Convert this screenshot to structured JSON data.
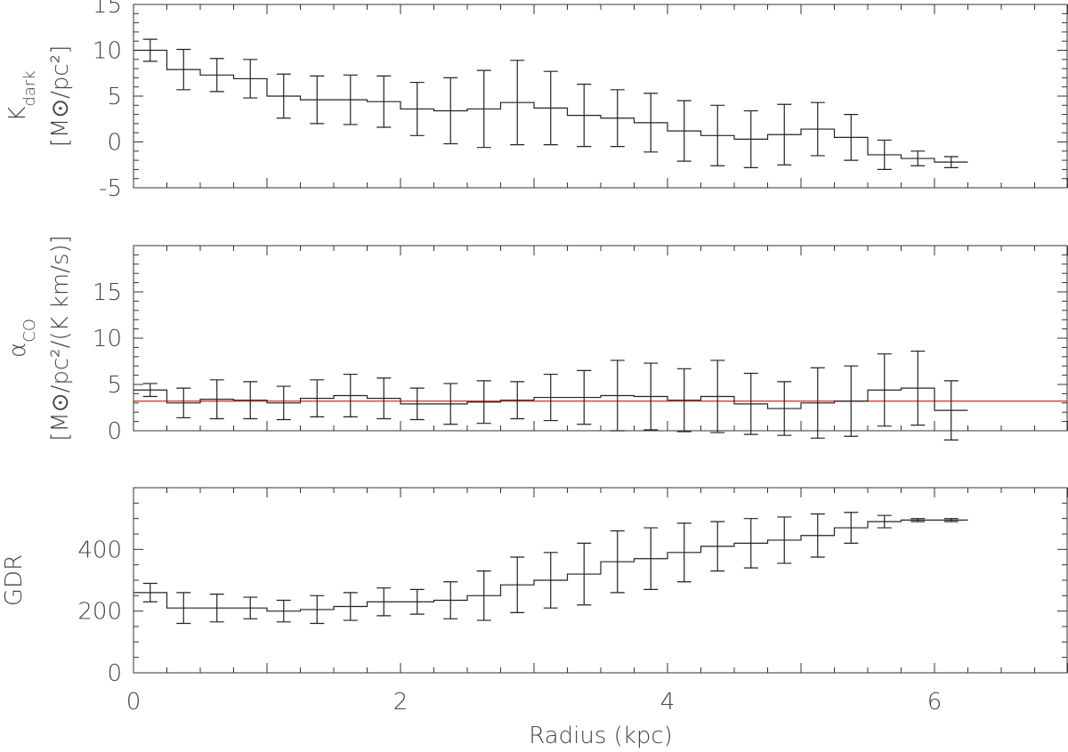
{
  "colors": {
    "ink": "#222222",
    "reference_line": "#d62728"
  },
  "x_axis": {
    "label": "Radius (kpc)",
    "range": [
      0,
      7
    ],
    "tick_values": [
      0,
      2,
      4,
      6
    ],
    "tick_labels": [
      "0",
      "2",
      "4",
      "6"
    ]
  },
  "chart_data": [
    {
      "type": "line",
      "style": "step histogram with error bars",
      "ylabel_main": "K",
      "ylabel_sub": "dark",
      "ylabel_units": "[M⊙/pc²]",
      "ylim": [
        -5,
        15
      ],
      "ytick_values": [
        -5,
        0,
        5,
        10,
        15
      ],
      "ytick_labels": [
        "-5",
        "0",
        "5",
        "10",
        "15"
      ],
      "series": [
        {
          "x": [
            0.125,
            0.375,
            0.625,
            0.875,
            1.125,
            1.375,
            1.625,
            1.875,
            2.125,
            2.375,
            2.625,
            2.875,
            3.125,
            3.375,
            3.625,
            3.875,
            4.125,
            4.375,
            4.625,
            4.875,
            5.125,
            5.375,
            5.625,
            5.875,
            6.125
          ],
          "values": [
            10.0,
            7.9,
            7.3,
            6.9,
            5.0,
            4.6,
            4.6,
            4.4,
            3.6,
            3.4,
            3.6,
            4.3,
            3.7,
            2.9,
            2.6,
            2.1,
            1.2,
            0.7,
            0.3,
            0.8,
            1.4,
            0.5,
            -1.4,
            -1.8,
            -2.2
          ],
          "err": [
            1.2,
            2.2,
            1.8,
            2.1,
            2.4,
            2.6,
            2.7,
            2.8,
            2.9,
            3.6,
            4.2,
            4.6,
            4.0,
            3.4,
            3.1,
            3.2,
            3.3,
            3.3,
            3.1,
            3.3,
            2.9,
            2.5,
            1.6,
            0.8,
            0.6
          ]
        }
      ]
    },
    {
      "type": "line",
      "style": "step histogram with error bars",
      "ylabel_main": "α",
      "ylabel_sub": "CO",
      "ylabel_units": "[M⊙/pc²/(K km/s)]",
      "ylim": [
        0,
        20
      ],
      "ytick_values": [
        0,
        5,
        10,
        15
      ],
      "ytick_labels": [
        "0",
        "5",
        "10",
        "15"
      ],
      "reference_line": 3.2,
      "series": [
        {
          "x": [
            0.125,
            0.375,
            0.625,
            0.875,
            1.125,
            1.375,
            1.625,
            1.875,
            2.125,
            2.375,
            2.625,
            2.875,
            3.125,
            3.375,
            3.625,
            3.875,
            4.125,
            4.375,
            4.625,
            4.875,
            5.125,
            5.375,
            5.625,
            5.875,
            6.125
          ],
          "values": [
            4.4,
            3.0,
            3.4,
            3.3,
            3.0,
            3.5,
            3.8,
            3.5,
            2.9,
            2.9,
            3.1,
            3.3,
            3.6,
            3.6,
            3.8,
            3.7,
            3.3,
            3.7,
            2.9,
            2.4,
            3.0,
            3.2,
            4.4,
            4.6,
            2.2
          ],
          "err": [
            0.7,
            1.6,
            2.1,
            2.0,
            1.8,
            2.0,
            2.3,
            2.2,
            1.7,
            2.2,
            2.3,
            2.0,
            2.5,
            2.9,
            3.8,
            3.6,
            3.4,
            3.9,
            3.3,
            2.9,
            3.8,
            3.8,
            3.9,
            4.0,
            3.2
          ]
        }
      ]
    },
    {
      "type": "line",
      "style": "step histogram with error bars",
      "ylabel_main": "GDR",
      "ylabel_sub": "",
      "ylabel_units": "",
      "ylim": [
        0,
        600
      ],
      "ytick_values": [
        0,
        200,
        400
      ],
      "ytick_labels": [
        "0",
        "200",
        "400"
      ],
      "series": [
        {
          "x": [
            0.125,
            0.375,
            0.625,
            0.875,
            1.125,
            1.375,
            1.625,
            1.875,
            2.125,
            2.375,
            2.625,
            2.875,
            3.125,
            3.375,
            3.625,
            3.875,
            4.125,
            4.375,
            4.625,
            4.875,
            5.125,
            5.375,
            5.625,
            5.875,
            6.125
          ],
          "values": [
            260,
            210,
            210,
            210,
            200,
            205,
            215,
            230,
            230,
            235,
            250,
            285,
            300,
            320,
            360,
            370,
            390,
            410,
            420,
            430,
            445,
            470,
            490,
            495,
            495
          ],
          "err": [
            30,
            50,
            45,
            35,
            35,
            45,
            45,
            45,
            40,
            60,
            80,
            90,
            90,
            100,
            100,
            100,
            95,
            80,
            80,
            75,
            70,
            50,
            20,
            5,
            5
          ]
        }
      ]
    }
  ]
}
